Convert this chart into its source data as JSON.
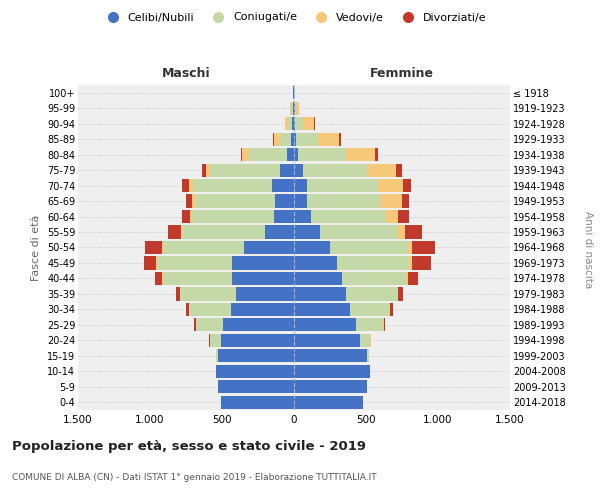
{
  "age_groups": [
    "0-4",
    "5-9",
    "10-14",
    "15-19",
    "20-24",
    "25-29",
    "30-34",
    "35-39",
    "40-44",
    "45-49",
    "50-54",
    "55-59",
    "60-64",
    "65-69",
    "70-74",
    "75-79",
    "80-84",
    "85-89",
    "90-94",
    "95-99",
    "100+"
  ],
  "birth_years": [
    "2014-2018",
    "2009-2013",
    "2004-2008",
    "1999-2003",
    "1994-1998",
    "1989-1993",
    "1984-1988",
    "1979-1983",
    "1974-1978",
    "1969-1973",
    "1964-1968",
    "1959-1963",
    "1954-1958",
    "1949-1953",
    "1944-1948",
    "1939-1943",
    "1934-1938",
    "1929-1933",
    "1924-1928",
    "1919-1923",
    "≤ 1918"
  ],
  "male_celibi": [
    510,
    530,
    540,
    530,
    510,
    490,
    440,
    400,
    430,
    430,
    350,
    200,
    140,
    130,
    150,
    100,
    50,
    20,
    15,
    10,
    5
  ],
  "male_coniugati": [
    0,
    0,
    0,
    10,
    70,
    190,
    290,
    390,
    480,
    520,
    560,
    580,
    570,
    560,
    550,
    480,
    260,
    80,
    30,
    10,
    2
  ],
  "male_vedovi": [
    0,
    0,
    0,
    0,
    2,
    2,
    2,
    2,
    5,
    5,
    5,
    5,
    10,
    20,
    30,
    30,
    50,
    40,
    20,
    5,
    1
  ],
  "male_divorziati": [
    0,
    0,
    0,
    0,
    5,
    10,
    20,
    30,
    50,
    90,
    120,
    90,
    60,
    40,
    50,
    30,
    10,
    5,
    0,
    0,
    0
  ],
  "female_celibi": [
    480,
    510,
    530,
    510,
    460,
    430,
    390,
    360,
    330,
    300,
    250,
    180,
    120,
    90,
    90,
    60,
    30,
    15,
    10,
    5,
    3
  ],
  "female_coniugati": [
    0,
    0,
    0,
    10,
    70,
    190,
    270,
    360,
    450,
    500,
    540,
    540,
    520,
    510,
    490,
    450,
    330,
    150,
    50,
    10,
    1
  ],
  "female_vedovi": [
    0,
    0,
    0,
    0,
    2,
    5,
    5,
    5,
    10,
    20,
    30,
    50,
    80,
    150,
    180,
    200,
    200,
    150,
    80,
    20,
    2
  ],
  "female_divorziati": [
    0,
    0,
    0,
    0,
    5,
    10,
    20,
    30,
    70,
    130,
    160,
    120,
    80,
    50,
    50,
    40,
    20,
    10,
    5,
    0,
    0
  ],
  "colors": {
    "celibi": "#4472c4",
    "coniugati": "#c5d9a8",
    "vedovi": "#f5c87a",
    "divorziati": "#c0392b"
  },
  "title": "Popolazione per età, sesso e stato civile - 2019",
  "subtitle": "COMUNE DI ALBA (CN) - Dati ISTAT 1° gennaio 2019 - Elaborazione TUTTITALIA.IT",
  "xlabel_left": "Maschi",
  "xlabel_right": "Femmine",
  "ylabel_left": "Fasce di età",
  "ylabel_right": "Anni di nascita",
  "xlim": 1500,
  "legend_labels": [
    "Celibi/Nubili",
    "Coniugati/e",
    "Vedovi/e",
    "Divorziati/e"
  ],
  "bg_color": "#efefef",
  "grid_color": "#cccccc"
}
